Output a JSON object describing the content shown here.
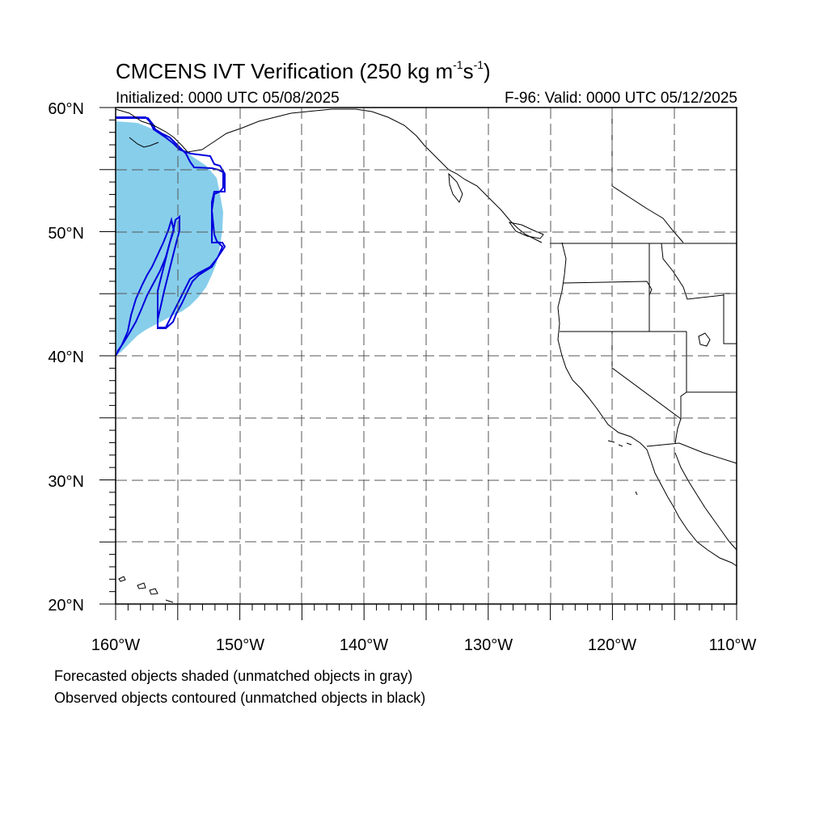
{
  "title": {
    "main": "CMCENS IVT Verification (250 kg m",
    "exp1": "-1",
    "mid": "s",
    "exp2": "-1",
    "close": ")"
  },
  "subtitle_left": "Initialized: 0000 UTC 05/08/2025",
  "subtitle_right": "F-96: Valid: 0000 UTC 05/12/2025",
  "footnotes": [
    "Forecasted objects shaded (unmatched objects in gray)",
    "Observed objects contoured (unmatched objects in black)"
  ],
  "map": {
    "lon_range": [
      -160,
      -110
    ],
    "lat_range": [
      20,
      60
    ],
    "grid_spacing_deg": 5,
    "grid_style": "dashed",
    "lat_labels": [
      "20°N",
      "30°N",
      "40°N",
      "50°N",
      "60°N"
    ],
    "lon_labels": [
      "160°W",
      "150°W",
      "140°W",
      "130°W",
      "120°W",
      "110°W"
    ],
    "colors": {
      "forecast_shading": "#87ceeb",
      "observed_contour": "#0000dd",
      "coastline": "#000000",
      "grid": "#555555"
    }
  }
}
